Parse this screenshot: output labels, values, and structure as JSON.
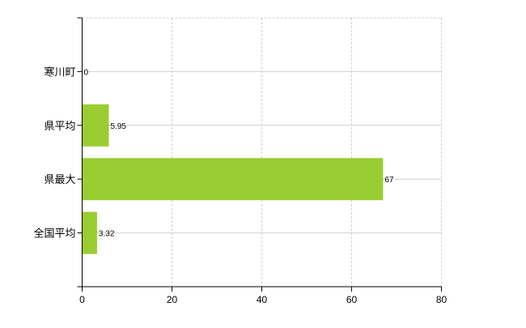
{
  "chart_data": {
    "type": "bar",
    "orientation": "horizontal",
    "categories": [
      "寒川町",
      "県平均",
      "県最大",
      "全国平均"
    ],
    "values": [
      0,
      5.95,
      67,
      3.32
    ],
    "value_labels": [
      "0",
      "5.95",
      "67",
      "3.32"
    ],
    "title": "",
    "xlabel": "",
    "ylabel": "",
    "xlim": [
      0,
      80
    ],
    "xticks": [
      "0",
      "20",
      "40",
      "60",
      "80"
    ],
    "grid": true,
    "bar_color": "#9acd32"
  }
}
